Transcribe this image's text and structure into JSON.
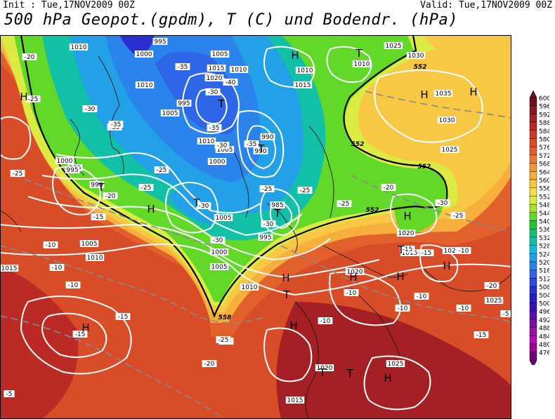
{
  "header": {
    "init": "Init : Tue,17NOV2009 00Z",
    "valid": "Valid: Tue,17NOV2009 00Z",
    "title": "500 hPa Geopot.(gpdm), T (C) und Bodendr. (hPa)"
  },
  "legend": {
    "labels": [
      "600",
      "596",
      "592",
      "588",
      "584",
      "580",
      "576",
      "572",
      "568",
      "564",
      "560",
      "556",
      "552",
      "548",
      "544",
      "540",
      "536",
      "532",
      "528",
      "524",
      "520",
      "516",
      "512",
      "508",
      "504",
      "500",
      "496",
      "492",
      "488",
      "484",
      "480",
      "476"
    ],
    "colors": [
      "#6e1020",
      "#8a1822",
      "#a42024",
      "#bc2a26",
      "#cc3a26",
      "#d84c28",
      "#e2602c",
      "#ea7a30",
      "#f29436",
      "#f6ae3c",
      "#f8c844",
      "#f4dc4c",
      "#dcea44",
      "#a8e230",
      "#62d828",
      "#22c830",
      "#16c270",
      "#12c0a8",
      "#16b8d8",
      "#22a0e8",
      "#2a84ec",
      "#2e66e8",
      "#2c4ae0",
      "#2a30d0",
      "#2820c0",
      "#3412b0",
      "#5a10a8",
      "#7c0ea4",
      "#9c0ca8",
      "#b40cb0",
      "#9a0890",
      "#6a0870"
    ]
  },
  "map_labels": {
    "pressure": [
      "1010",
      "1000",
      "995",
      "1005",
      "1015",
      "1010",
      "1020",
      "995",
      "1010",
      "1005",
      "1010",
      "1015",
      "1020",
      "1030",
      "1035",
      "1030",
      "1025",
      "1025",
      "1015",
      "1010",
      "1005",
      "1000",
      "995",
      "990",
      "985",
      "995",
      "990",
      "1005",
      "1000",
      "995",
      "990",
      "1005",
      "1010",
      "1000",
      "1005",
      "1010",
      "1015",
      "1020",
      "1025",
      "1020",
      "1020",
      "1015",
      "1010",
      "1025",
      "1020",
      "1015"
    ],
    "temperature": [
      "-30",
      "-20",
      "-35",
      "-40",
      "-30",
      "-35",
      "-25",
      "-25",
      "-20",
      "-15",
      "-35",
      "-30",
      "-25",
      "-30",
      "-25",
      "-30",
      "-25",
      "-20",
      "-25",
      "-35",
      "-30",
      "-25",
      "-20",
      "-15",
      "-10",
      "-10",
      "-10",
      "-15",
      "-10",
      "-10",
      "-10",
      "-5",
      "-15",
      "-20",
      "-25",
      "-30",
      "-35",
      "-25",
      "-15",
      "-10",
      "-10",
      "-5",
      "-10",
      "-15",
      "-20"
    ],
    "geopotential": [
      "552",
      "552",
      "552",
      "552",
      "558"
    ],
    "highs": [
      "H",
      "H",
      "H",
      "H",
      "H",
      "H",
      "H",
      "H",
      "H",
      "H",
      "H",
      "H",
      "H"
    ],
    "lows": [
      "T",
      "T",
      "T",
      "T",
      "T",
      "T",
      "T",
      "T",
      "T",
      "T"
    ]
  }
}
